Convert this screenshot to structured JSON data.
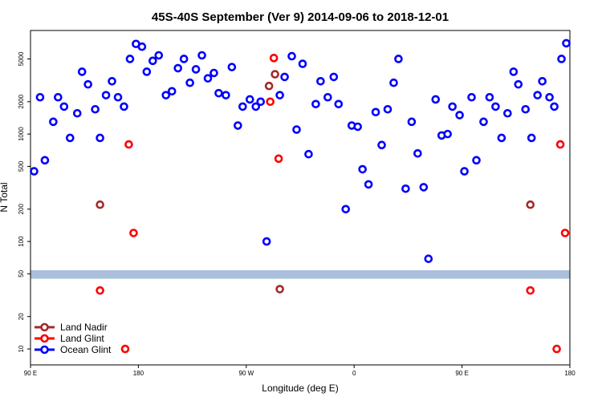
{
  "chart_data": {
    "type": "scatter",
    "title": "45S-40S September (Ver 9)   2014-09-06 to 2018-12-01",
    "x_label": "Longitude (deg E)",
    "y_label": "N Total",
    "xlim": [
      90,
      540
    ],
    "xticks": [
      {
        "value": 90,
        "label": "90 E"
      },
      {
        "value": 180,
        "label": "180"
      },
      {
        "value": 270,
        "label": "90 W"
      },
      {
        "value": 360,
        "label": "0"
      },
      {
        "value": 450,
        "label": "90 E"
      },
      {
        "value": 540,
        "label": "180"
      }
    ],
    "ylim": [
      7.1,
      9200
    ],
    "yticks": [
      10,
      20,
      50,
      100,
      200,
      500,
      1000,
      2000,
      5000
    ],
    "log_y": true,
    "legend": "lower left",
    "reference_band": {
      "range": [
        45,
        54
      ],
      "color": "#a9bfdc"
    },
    "series": [
      {
        "name": "Land Nadir",
        "color": "#a52a2a",
        "x": [
          148,
          289,
          294,
          298,
          507
        ],
        "values": [
          220,
          2800,
          3600,
          36,
          220
        ]
      },
      {
        "name": "Land Glint",
        "color": "#ff0000",
        "x": [
          148,
          169,
          172,
          176,
          290,
          293,
          297,
          507,
          529,
          532,
          536
        ],
        "values": [
          35,
          10,
          800,
          120,
          2000,
          5100,
          590,
          35,
          10,
          800,
          120
        ]
      },
      {
        "name": "Ocean Glint",
        "color": "#0000ff",
        "x": [
          93,
          98,
          102,
          109,
          113,
          118,
          123,
          129,
          133,
          138,
          144,
          148,
          153,
          158,
          163,
          168,
          173,
          178,
          183,
          187,
          192,
          197,
          203,
          208,
          213,
          218,
          223,
          228,
          233,
          238,
          243,
          247,
          253,
          258,
          263,
          267,
          273,
          278,
          282,
          287,
          298,
          302,
          308,
          312,
          317,
          322,
          328,
          332,
          338,
          343,
          347,
          353,
          358,
          363,
          367,
          372,
          378,
          383,
          388,
          393,
          397,
          403,
          408,
          413,
          418,
          422,
          428,
          433,
          438,
          442,
          448,
          452,
          458,
          462,
          468,
          473,
          478,
          483,
          488,
          493,
          497,
          503,
          508,
          513,
          517,
          523,
          527,
          533,
          537
        ],
        "values": [
          450,
          2200,
          570,
          1300,
          2200,
          1800,
          920,
          1560,
          3800,
          2900,
          1700,
          920,
          2300,
          3100,
          2200,
          1800,
          5000,
          6900,
          6500,
          3800,
          4800,
          5400,
          2300,
          2500,
          4100,
          5000,
          3000,
          4000,
          5400,
          3300,
          3700,
          2400,
          2300,
          4200,
          1200,
          1800,
          2100,
          1800,
          2000,
          100,
          2300,
          3400,
          5300,
          1100,
          4500,
          650,
          1900,
          3100,
          2200,
          3400,
          1900,
          200,
          1200,
          1170,
          470,
          340,
          1600,
          790,
          1700,
          3000,
          5000,
          310,
          1300,
          660,
          320,
          69,
          2100,
          970,
          1000,
          1800,
          1500,
          450,
          2200,
          570,
          1300,
          2200,
          1800,
          920,
          1560,
          3800,
          2900,
          1700,
          920,
          2300,
          3100,
          2200,
          1800,
          5000,
          7000
        ]
      }
    ]
  }
}
